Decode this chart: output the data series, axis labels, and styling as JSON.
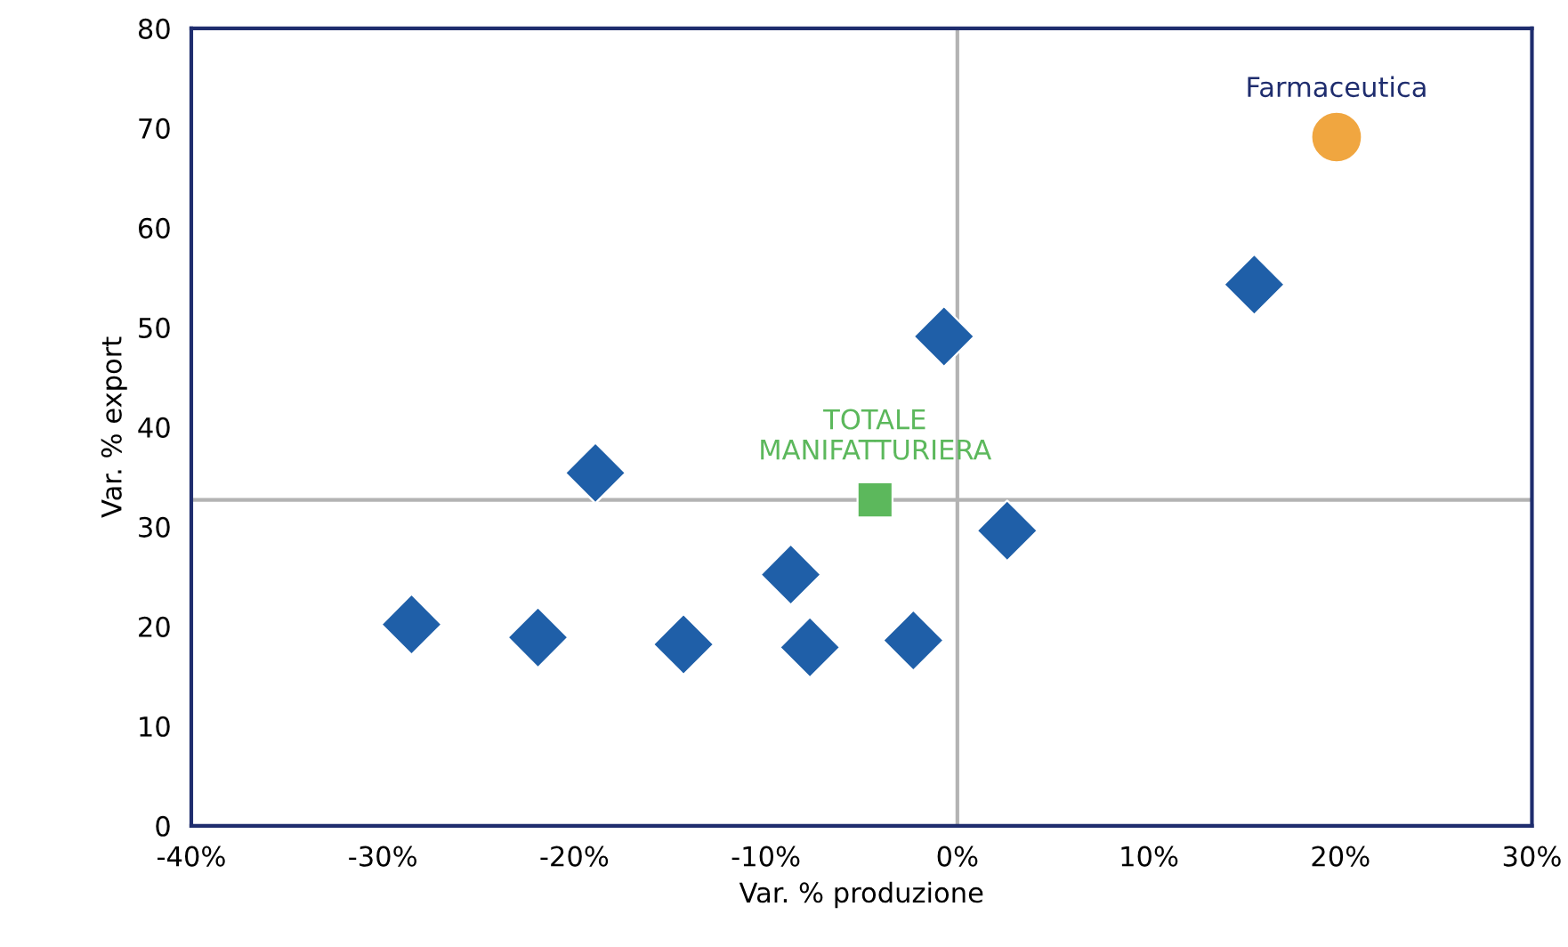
{
  "chart_data": {
    "type": "scatter",
    "xlabel": "Var. % produzione",
    "ylabel": "Var. % export",
    "xlim": [
      -40,
      30
    ],
    "ylim": [
      0,
      80
    ],
    "xticks": [
      {
        "value": -40,
        "label": "-40%"
      },
      {
        "value": -30,
        "label": "-30%"
      },
      {
        "value": -20,
        "label": "-20%"
      },
      {
        "value": -10,
        "label": "-10%"
      },
      {
        "value": 0,
        "label": "0%"
      },
      {
        "value": 10,
        "label": "10%"
      },
      {
        "value": 20,
        "label": "20%"
      },
      {
        "value": 30,
        "label": "30%"
      }
    ],
    "yticks": [
      0,
      10,
      20,
      30,
      40,
      50,
      60,
      70,
      80
    ],
    "grid": false,
    "ref_lines": [
      {
        "axis": "x",
        "value": 0,
        "color": "#b3b3b3"
      },
      {
        "axis": "y",
        "value": 32.7,
        "color": "#b3b3b3"
      }
    ],
    "series": [
      {
        "color": "#1f5fa8",
        "marker": "diamond",
        "x": [
          -28.5,
          -21.9,
          -18.9,
          -14.3,
          -8.7,
          -7.7,
          -2.3,
          -0.7,
          2.6,
          15.5
        ],
        "values": [
          20.2,
          18.9,
          35.4,
          18.2,
          25.2,
          17.9,
          18.6,
          49.1,
          29.6,
          54.3
        ]
      },
      {
        "name": "Farmaceutica",
        "color": "#f0a640",
        "marker": "circle",
        "x": [
          19.8
        ],
        "values": [
          69.1
        ]
      },
      {
        "name": "TOTALE\nMANIFATTURIERA",
        "color": "#5cb85c",
        "marker": "square",
        "x": [
          -4.3
        ],
        "values": [
          32.7
        ]
      }
    ]
  }
}
